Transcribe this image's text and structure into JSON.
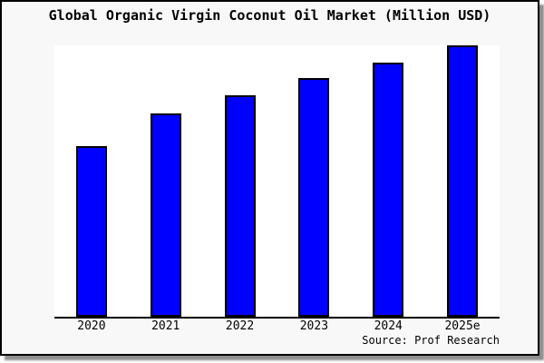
{
  "page": {
    "background": "#ffffff",
    "panel_background": "#f8f8f8",
    "frame_border_color": "#000000",
    "shadow_color": "#8f8f8f"
  },
  "chart_data": {
    "type": "bar",
    "title": "Global Organic Virgin Coconut Oil Market (Million USD)",
    "categories": [
      "2020",
      "2021",
      "2022",
      "2023",
      "2024",
      "2025e"
    ],
    "values": [
      63,
      75,
      81.5,
      88,
      93.5,
      100
    ],
    "value_note": "no y-axis shown; bar heights relative, 2025e indexed to 100",
    "xlabel": "",
    "ylabel": "",
    "ylim": [
      0,
      100
    ],
    "grid": false,
    "legend": false,
    "bar_fill_color": "#0000ff",
    "bar_border_color": "#000000",
    "axis_line_color": "#000000",
    "plot_background": "#ffffff",
    "source_note": "Source: Prof Research"
  }
}
